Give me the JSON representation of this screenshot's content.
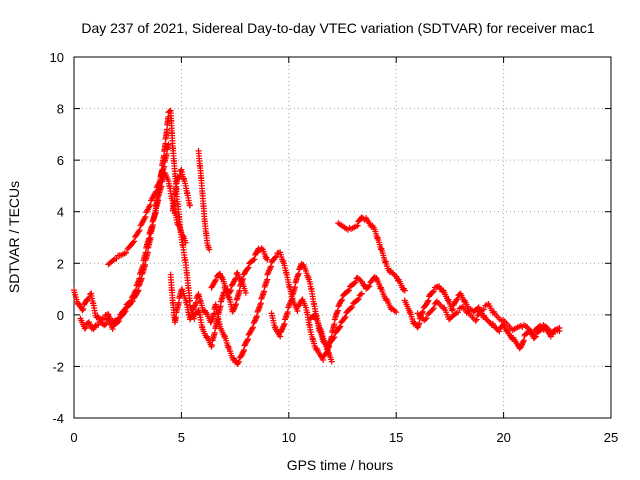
{
  "chart_data": {
    "type": "scatter",
    "title": "Day 237 of 2021, Sidereal Day-to-day VTEC variation (SDTVAR) for receiver mac1",
    "xlabel": "GPS time / hours",
    "ylabel": "SDTVAR / TECUs",
    "xlim": [
      0,
      25
    ],
    "ylim": [
      -4,
      10
    ],
    "xticks": [
      "0",
      "5",
      "10",
      "15",
      "20",
      "25"
    ],
    "yticks": [
      "-4",
      "-2",
      "0",
      "2",
      "4",
      "6",
      "8",
      "10"
    ],
    "grid": true,
    "marker": "+",
    "series": [
      {
        "name": "SDTVAR",
        "color": "#ff0000",
        "traces": [
          {
            "x": [
              0.0,
              0.2,
              0.4,
              0.6,
              0.8,
              1.0,
              1.2,
              1.4,
              1.6,
              1.8,
              2.0,
              2.2,
              2.4,
              2.6,
              2.8,
              3.0,
              3.2,
              3.4,
              3.6,
              3.8,
              4.0,
              4.2,
              4.3,
              4.4,
              4.5,
              4.6,
              4.8,
              5.0,
              5.2,
              5.4
            ],
            "y": [
              0.9,
              0.4,
              0.2,
              0.6,
              0.8,
              0.0,
              -0.2,
              -0.1,
              0.0,
              -0.3,
              -0.2,
              0.0,
              0.3,
              0.5,
              0.6,
              1.0,
              1.6,
              2.3,
              3.2,
              4.1,
              5.1,
              6.3,
              7.0,
              7.8,
              7.9,
              6.5,
              4.5,
              3.0,
              2.0,
              0.5
            ]
          },
          {
            "x": [
              0.3,
              0.5,
              0.7,
              0.9,
              1.0,
              1.2,
              1.4,
              1.6,
              1.8,
              2.0,
              2.2,
              2.4,
              2.6,
              2.8,
              3.0,
              3.2,
              3.4,
              3.6,
              3.8,
              4.0,
              4.2,
              4.4,
              4.6,
              4.8,
              5.0,
              5.2
            ],
            "y": [
              -0.2,
              -0.5,
              -0.3,
              -0.6,
              -0.4,
              -0.3,
              -0.4,
              -0.2,
              -0.5,
              -0.3,
              -0.1,
              0.2,
              0.4,
              0.8,
              1.3,
              1.9,
              2.7,
              3.4,
              4.0,
              4.8,
              5.5,
              5.2,
              4.3,
              3.6,
              3.2,
              2.8
            ]
          },
          {
            "x": [
              1.6,
              1.9,
              2.2,
              2.5,
              2.8,
              3.1,
              3.4,
              3.7,
              4.0,
              4.2,
              4.4
            ],
            "y": [
              1.9,
              2.2,
              2.3,
              2.5,
              2.9,
              3.4,
              4.0,
              4.6,
              5.2,
              5.8,
              6.6
            ]
          },
          {
            "x": [
              4.6,
              4.8,
              5.0,
              5.2,
              5.4
            ],
            "y": [
              4.0,
              5.2,
              5.6,
              5.0,
              4.2
            ]
          },
          {
            "x": [
              5.8,
              5.9,
              6.0,
              6.1,
              6.2,
              6.3
            ],
            "y": [
              6.3,
              5.5,
              4.5,
              3.5,
              2.8,
              2.5
            ]
          },
          {
            "x": [
              4.5,
              4.6,
              4.7,
              4.8,
              5.0,
              5.2,
              5.4,
              5.6,
              5.8,
              6.0,
              6.2,
              6.4,
              6.6,
              6.8,
              7.0,
              7.2,
              7.4,
              7.6,
              7.8,
              8.0,
              8.2,
              8.4,
              8.6,
              8.8,
              9.0
            ],
            "y": [
              1.5,
              0.5,
              -0.3,
              0.2,
              1.0,
              0.6,
              -0.2,
              0.3,
              0.8,
              0.2,
              0.0,
              -0.3,
              0.4,
              -0.5,
              -0.8,
              -1.3,
              -1.7,
              -1.9,
              -1.6,
              -1.1,
              -0.7,
              -0.3,
              0.2,
              0.8,
              1.4
            ]
          },
          {
            "x": [
              5.4,
              5.6,
              5.8,
              6.0,
              6.2,
              6.4,
              6.6,
              6.8,
              7.0,
              7.2,
              7.4,
              7.6,
              7.8,
              8.0,
              8.2,
              8.4,
              8.6,
              8.8,
              9.0
            ],
            "y": [
              0.3,
              -0.1,
              0.2,
              -0.6,
              -0.9,
              -1.2,
              -0.5,
              0.3,
              1.0,
              0.7,
              0.1,
              0.6,
              1.3,
              1.7,
              2.0,
              2.2,
              2.6,
              2.5,
              2.1
            ]
          },
          {
            "x": [
              6.4,
              6.6,
              6.8,
              7.0,
              7.2,
              7.4,
              7.6,
              7.8,
              8.0
            ],
            "y": [
              1.0,
              1.4,
              1.6,
              1.2,
              0.8,
              1.2,
              1.6,
              1.3,
              0.9
            ]
          },
          {
            "x": [
              9.0,
              9.2,
              9.4,
              9.6,
              9.8,
              10.0,
              10.2,
              10.4,
              10.6,
              10.8,
              11.0,
              11.2,
              11.4,
              11.6,
              11.8,
              12.0,
              12.2,
              12.4,
              12.6,
              12.8,
              13.0,
              13.2,
              13.4,
              13.6,
              13.8,
              14.0,
              14.2,
              14.4,
              14.6,
              14.8,
              15.0
            ],
            "y": [
              1.5,
              2.0,
              2.3,
              2.4,
              1.9,
              1.2,
              0.5,
              0.2,
              0.6,
              0.3,
              -0.6,
              -1.2,
              -1.5,
              -1.7,
              -1.4,
              -0.8,
              0.0,
              0.5,
              0.8,
              1.0,
              1.2,
              1.4,
              1.3,
              1.0,
              1.2,
              1.5,
              1.2,
              0.8,
              0.5,
              0.2,
              0.1
            ]
          },
          {
            "x": [
              9.2,
              9.4,
              9.6,
              9.8,
              10.0,
              10.2,
              10.4,
              10.6,
              10.8,
              11.0,
              11.2,
              11.4,
              11.6,
              11.8,
              12.0,
              12.2,
              12.4,
              12.6,
              12.8,
              13.0,
              13.2,
              13.4
            ],
            "y": [
              0.0,
              -0.6,
              -0.8,
              -0.3,
              0.3,
              0.8,
              1.5,
              2.0,
              1.7,
              1.2,
              0.3,
              -0.5,
              -1.0,
              -1.3,
              -1.0,
              -0.7,
              -0.4,
              -0.1,
              0.2,
              0.4,
              0.6,
              0.8
            ]
          },
          {
            "x": [
              11.0,
              11.2,
              11.4,
              11.6,
              11.8,
              12.0
            ],
            "y": [
              -0.2,
              0.0,
              -0.4,
              -0.9,
              -1.4,
              -1.8
            ]
          },
          {
            "x": [
              12.3,
              12.6,
              12.9,
              13.2,
              13.4,
              13.6,
              13.8,
              14.0,
              14.2,
              14.4,
              14.6,
              14.8,
              15.0,
              15.2,
              15.4
            ],
            "y": [
              3.5,
              3.4,
              3.3,
              3.5,
              3.8,
              3.7,
              3.5,
              3.3,
              2.8,
              2.3,
              1.8,
              1.6,
              1.5,
              1.2,
              0.9
            ]
          },
          {
            "x": [
              15.4,
              15.6,
              15.8,
              16.0,
              16.2,
              16.4,
              16.6,
              16.8,
              17.0,
              17.2,
              17.4,
              17.6,
              17.8,
              18.0,
              18.2,
              18.4,
              18.6,
              18.8,
              19.0,
              19.2,
              19.4,
              19.6,
              19.8,
              20.0,
              20.2,
              20.4,
              20.6,
              20.8,
              21.0,
              21.2,
              21.4,
              21.6,
              21.8,
              22.0,
              22.2,
              22.4,
              22.6
            ],
            "y": [
              0.5,
              0.2,
              -0.3,
              -0.5,
              0.1,
              0.4,
              0.8,
              1.0,
              1.1,
              0.9,
              0.6,
              0.2,
              0.6,
              0.8,
              0.5,
              0.2,
              0.1,
              0.3,
              0.0,
              -0.2,
              -0.3,
              -0.5,
              -0.6,
              -0.4,
              -0.7,
              -0.9,
              -1.1,
              -1.3,
              -0.8,
              -0.6,
              -0.9,
              -0.7,
              -0.5,
              -0.6,
              -0.8,
              -0.6,
              -0.6
            ]
          },
          {
            "x": [
              16.0,
              16.3,
              16.6,
              16.9,
              17.2,
              17.5,
              17.8,
              18.1,
              18.4,
              18.7,
              19.0,
              19.3,
              19.6,
              19.9,
              20.2,
              20.5,
              20.8,
              21.1,
              21.4,
              21.7,
              22.0,
              22.3,
              22.6
            ],
            "y": [
              0.0,
              -0.2,
              0.1,
              0.5,
              0.3,
              -0.2,
              0.1,
              0.3,
              0.0,
              -0.2,
              0.2,
              0.4,
              0.0,
              -0.2,
              -0.4,
              -0.6,
              -0.4,
              -0.5,
              -0.7,
              -0.4,
              -0.5,
              -0.7,
              -0.5
            ]
          }
        ]
      }
    ]
  }
}
